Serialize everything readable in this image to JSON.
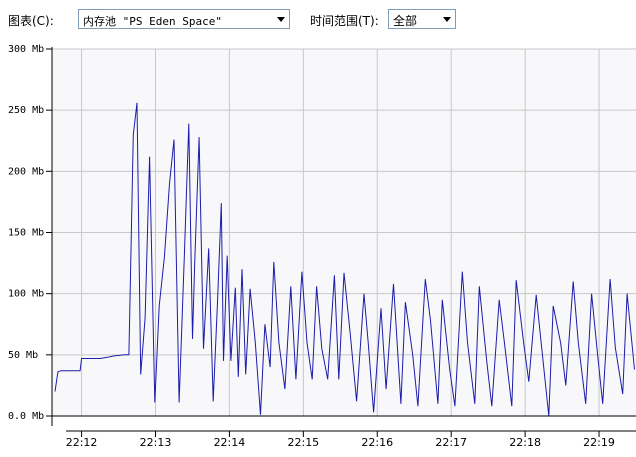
{
  "toolbar": {
    "chart_label": "图表(C):",
    "memory_pool_value": "内存池 \"PS Eden Space\"",
    "time_range_label": "时间范围(T):",
    "time_range_value": "全部"
  },
  "colors": {
    "line": "#1c1caa",
    "grid": "#c8c8c8",
    "plot_bg": "#f8f8fb",
    "axis": "#000000"
  },
  "chart_data": {
    "type": "line",
    "title": "",
    "xlabel": "",
    "ylabel": "",
    "y_unit": "Mb",
    "ylim": [
      0,
      300
    ],
    "yticks": [
      0,
      50,
      100,
      150,
      200,
      250,
      300
    ],
    "ytick_labels": [
      "0.0 Mb",
      "50 Mb",
      "100 Mb",
      "150 Mb",
      "200 Mb",
      "250 Mb",
      "300 Mb"
    ],
    "xlim": [
      -0.4,
      7.5
    ],
    "xticks": [
      0,
      1,
      2,
      3,
      4,
      5,
      6,
      7
    ],
    "xtick_labels": [
      "22:12",
      "22:13",
      "22:14",
      "22:15",
      "22:16",
      "22:17",
      "22:18",
      "22:19"
    ],
    "grid": true,
    "series": [
      {
        "x": [
          -0.36,
          -0.32,
          -0.28,
          -0.15,
          -0.02,
          0.0,
          0.25,
          0.35,
          0.42,
          0.58,
          0.64,
          0.7,
          0.75,
          0.8,
          0.86,
          0.92,
          0.99,
          1.05,
          1.12,
          1.19,
          1.25,
          1.32,
          1.39,
          1.45,
          1.5,
          1.53,
          1.59,
          1.65,
          1.72,
          1.78,
          1.84,
          1.89,
          1.92,
          1.97,
          2.02,
          2.08,
          2.12,
          2.17,
          2.22,
          2.28,
          2.35,
          2.42,
          2.48,
          2.55,
          2.6,
          2.67,
          2.75,
          2.83,
          2.9,
          2.98,
          3.05,
          3.12,
          3.18,
          3.25,
          3.33,
          3.42,
          3.48,
          3.55,
          3.63,
          3.72,
          3.82,
          3.88,
          3.95,
          4.05,
          4.12,
          4.22,
          4.32,
          4.38,
          4.48,
          4.55,
          4.65,
          4.72,
          4.82,
          4.88,
          4.98,
          5.05,
          5.15,
          5.22,
          5.32,
          5.38,
          5.48,
          5.55,
          5.65,
          5.72,
          5.82,
          5.88,
          5.98,
          6.05,
          6.15,
          6.22,
          6.32,
          6.38,
          6.48,
          6.55,
          6.65,
          6.72,
          6.82,
          6.9,
          6.98,
          7.05,
          7.15,
          7.22,
          7.32,
          7.38,
          7.48
        ],
        "y": [
          20,
          36,
          37,
          37,
          37,
          47,
          47,
          48,
          49,
          50,
          50,
          230,
          256,
          34,
          80,
          212,
          11,
          90,
          130,
          190,
          226,
          11,
          130,
          239,
          63,
          125,
          228,
          55,
          137,
          12,
          95,
          174,
          45,
          131,
          45,
          105,
          32,
          120,
          34,
          104,
          60,
          1,
          75,
          40,
          126,
          60,
          22,
          106,
          30,
          118,
          60,
          30,
          106,
          55,
          30,
          115,
          30,
          117,
          70,
          12,
          100,
          58,
          3,
          88,
          22,
          108,
          10,
          93,
          50,
          8,
          112,
          78,
          10,
          95,
          38,
          8,
          118,
          60,
          10,
          106,
          45,
          8,
          95,
          60,
          8,
          111,
          60,
          28,
          99,
          58,
          0,
          90,
          60,
          25,
          110,
          60,
          10,
          100,
          50,
          10,
          112,
          56,
          18,
          100,
          38
        ]
      }
    ]
  }
}
